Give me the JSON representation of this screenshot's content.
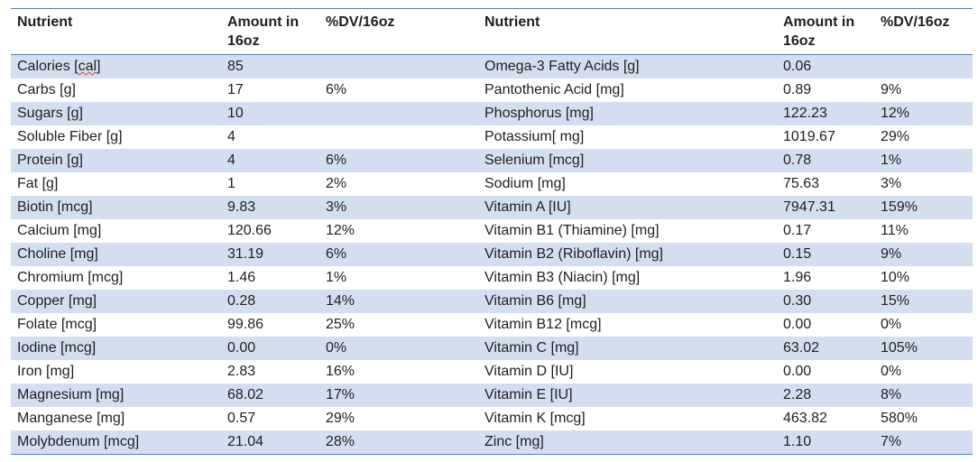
{
  "table": {
    "headers": {
      "left_nutrient": "Nutrient",
      "left_amount": "Amount in 16oz",
      "left_dv": "%DV/16oz",
      "right_nutrient": "Nutrient",
      "right_amount": "Amount in 16oz",
      "right_dv": "%DV/16oz"
    },
    "rows": [
      {
        "n1": "Calories [",
        "n1_mark": "cal",
        "n1_tail": "]",
        "a1": "85",
        "d1": "",
        "n2": "Omega-3 Fatty Acids [g]",
        "a2": "0.06",
        "d2": ""
      },
      {
        "n1": "Carbs [g]",
        "a1": "17",
        "d1": "6%",
        "n2": "Pantothenic Acid [mg]",
        "a2": "0.89",
        "d2": "9%"
      },
      {
        "n1": "Sugars [g]",
        "a1": "10",
        "d1": "",
        "n2": "Phosphorus [mg]",
        "a2": "122.23",
        "d2": "12%"
      },
      {
        "n1": "Soluble Fiber [g]",
        "a1": "4",
        "d1": "",
        "n2": "Potassium[ mg]",
        "a2": "1019.67",
        "d2": "29%"
      },
      {
        "n1": "Protein [g]",
        "a1": "4",
        "d1": "6%",
        "n2": "Selenium [mcg]",
        "a2": "0.78",
        "d2": "1%"
      },
      {
        "n1": "Fat [g]",
        "a1": "1",
        "d1": "2%",
        "n2": "Sodium [mg]",
        "a2": "75.63",
        "d2": "3%"
      },
      {
        "n1": "Biotin [mcg]",
        "a1": "9.83",
        "d1": "3%",
        "n2": "Vitamin A [IU]",
        "a2": "7947.31",
        "d2": "159%"
      },
      {
        "n1": "Calcium [mg]",
        "a1": "120.66",
        "d1": "12%",
        "n2": "Vitamin B1 (Thiamine) [mg]",
        "a2": "0.17",
        "d2": "11%"
      },
      {
        "n1": "Choline [mg]",
        "a1": "31.19",
        "d1": "6%",
        "n2": "Vitamin B2 (Riboflavin) [mg]",
        "a2": "0.15",
        "d2": "9%"
      },
      {
        "n1": "Chromium [mcg]",
        "a1": "1.46",
        "d1": "1%",
        "n2": "Vitamin B3 (Niacin) [mg]",
        "a2": "1.96",
        "d2": "10%"
      },
      {
        "n1": "Copper [mg]",
        "a1": "0.28",
        "d1": "14%",
        "n2": "Vitamin B6 [mg]",
        "a2": "0.30",
        "d2": "15%"
      },
      {
        "n1": "Folate [mcg]",
        "a1": "99.86",
        "d1": "25%",
        "n2": "Vitamin B12 [mcg]",
        "a2": "0.00",
        "d2": "0%"
      },
      {
        "n1": "Iodine [mcg]",
        "a1": "0.00",
        "d1": "0%",
        "n2": "Vitamin C [mg]",
        "a2": "63.02",
        "d2": "105%"
      },
      {
        "n1": "Iron [mg]",
        "a1": "2.83",
        "d1": "16%",
        "n2": "Vitamin D [IU]",
        "a2": "0.00",
        "d2": "0%"
      },
      {
        "n1": "Magnesium [mg]",
        "a1": "68.02",
        "d1": "17%",
        "n2": "Vitamin E [IU]",
        "a2": "2.28",
        "d2": "8%"
      },
      {
        "n1": "Manganese [mg]",
        "a1": "0.57",
        "d1": "29%",
        "n2": "Vitamin K [mcg]",
        "a2": "463.82",
        "d2": "580%"
      },
      {
        "n1": "Molybdenum [mcg]",
        "a1": "21.04",
        "d1": "28%",
        "n2": "Zinc [mg]",
        "a2": "1.10",
        "d2": "7%"
      }
    ]
  },
  "colors": {
    "band": "#d3dff0",
    "rule": "#4f81bd"
  }
}
